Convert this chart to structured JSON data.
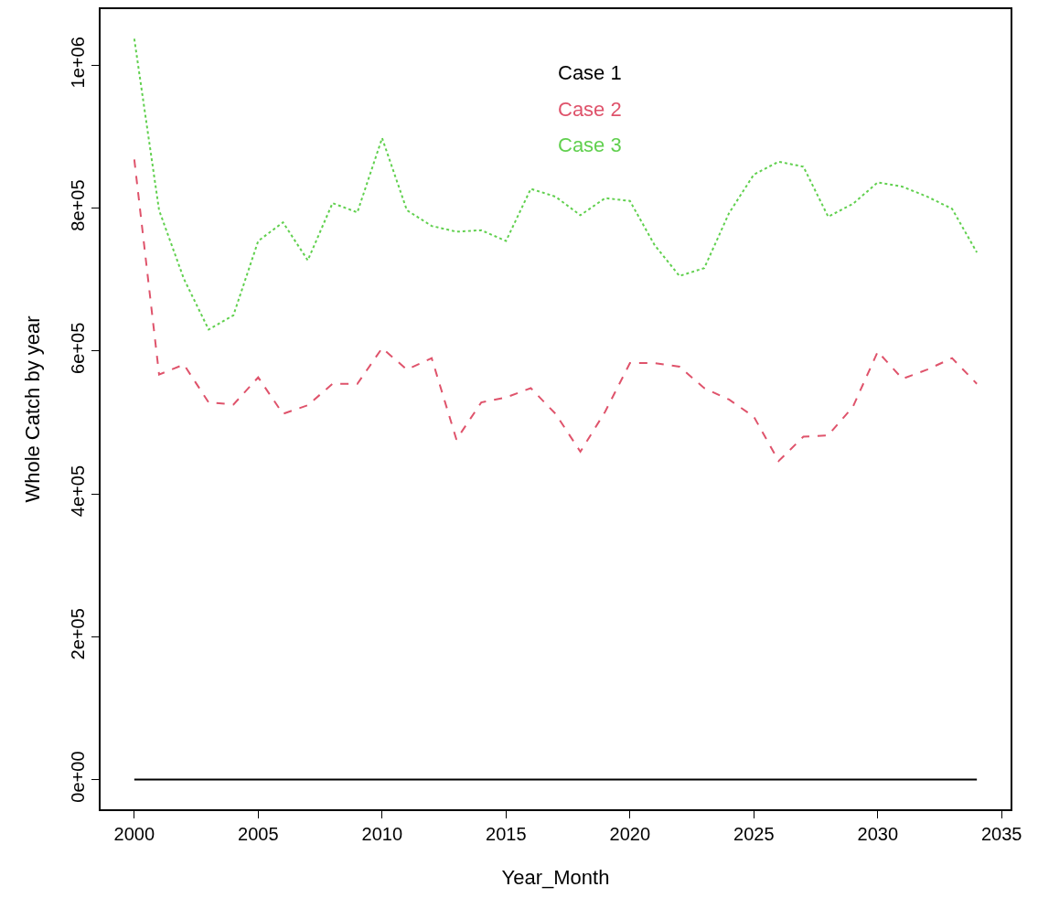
{
  "chart_data": {
    "type": "line",
    "xlabel": "Year_Month",
    "ylabel": "Whole Catch by year",
    "x": [
      2000,
      2001,
      2002,
      2003,
      2004,
      2005,
      2006,
      2007,
      2008,
      2009,
      2010,
      2011,
      2012,
      2013,
      2014,
      2015,
      2016,
      2017,
      2018,
      2019,
      2020,
      2021,
      2022,
      2023,
      2024,
      2025,
      2026,
      2027,
      2028,
      2029,
      2030,
      2031,
      2032,
      2033,
      2034
    ],
    "series": [
      {
        "name": "Case 1",
        "color": "#000000",
        "line_style": "solid",
        "values": [
          0,
          0,
          0,
          0,
          0,
          0,
          0,
          0,
          0,
          0,
          0,
          0,
          0,
          0,
          0,
          0,
          0,
          0,
          0,
          0,
          0,
          0,
          0,
          0,
          0,
          0,
          0,
          0,
          0,
          0,
          0,
          0,
          0,
          0,
          0
        ]
      },
      {
        "name": "Case 2",
        "color": "#df536b",
        "line_style": "dashed",
        "values": [
          868000,
          567000,
          581000,
          528000,
          525000,
          563000,
          512000,
          524000,
          554000,
          554000,
          604000,
          574000,
          590000,
          476000,
          528000,
          535000,
          548000,
          512000,
          459000,
          515000,
          583000,
          583000,
          578000,
          548000,
          532000,
          508000,
          446000,
          480000,
          482000,
          522000,
          599000,
          561000,
          574000,
          590000,
          554000
        ]
      },
      {
        "name": "Case 3",
        "color": "#61d04f",
        "line_style": "dotted",
        "values": [
          1037000,
          797000,
          701000,
          630000,
          650000,
          754000,
          780000,
          727000,
          807000,
          794000,
          898000,
          797000,
          775000,
          767000,
          769000,
          754000,
          827000,
          816000,
          790000,
          814000,
          810000,
          748000,
          705000,
          716000,
          793000,
          847000,
          865000,
          858000,
          788000,
          806000,
          836000,
          830000,
          816000,
          799000,
          738000
        ]
      }
    ],
    "xlim": [
      1998.64,
      2035.36
    ],
    "xticks": [
      2000,
      2005,
      2010,
      2015,
      2020,
      2025,
      2030,
      2035
    ],
    "ylim": [
      -41500,
      1078500
    ],
    "yticks": [
      {
        "value": 0,
        "label": "0e+00"
      },
      {
        "value": 200000,
        "label": "2e+05"
      },
      {
        "value": 400000,
        "label": "4e+05"
      },
      {
        "value": 600000,
        "label": "6e+05"
      },
      {
        "value": 800000,
        "label": "8e+05"
      },
      {
        "value": 1000000,
        "label": "1e+06"
      }
    ],
    "legend": "top",
    "marker": "none"
  }
}
